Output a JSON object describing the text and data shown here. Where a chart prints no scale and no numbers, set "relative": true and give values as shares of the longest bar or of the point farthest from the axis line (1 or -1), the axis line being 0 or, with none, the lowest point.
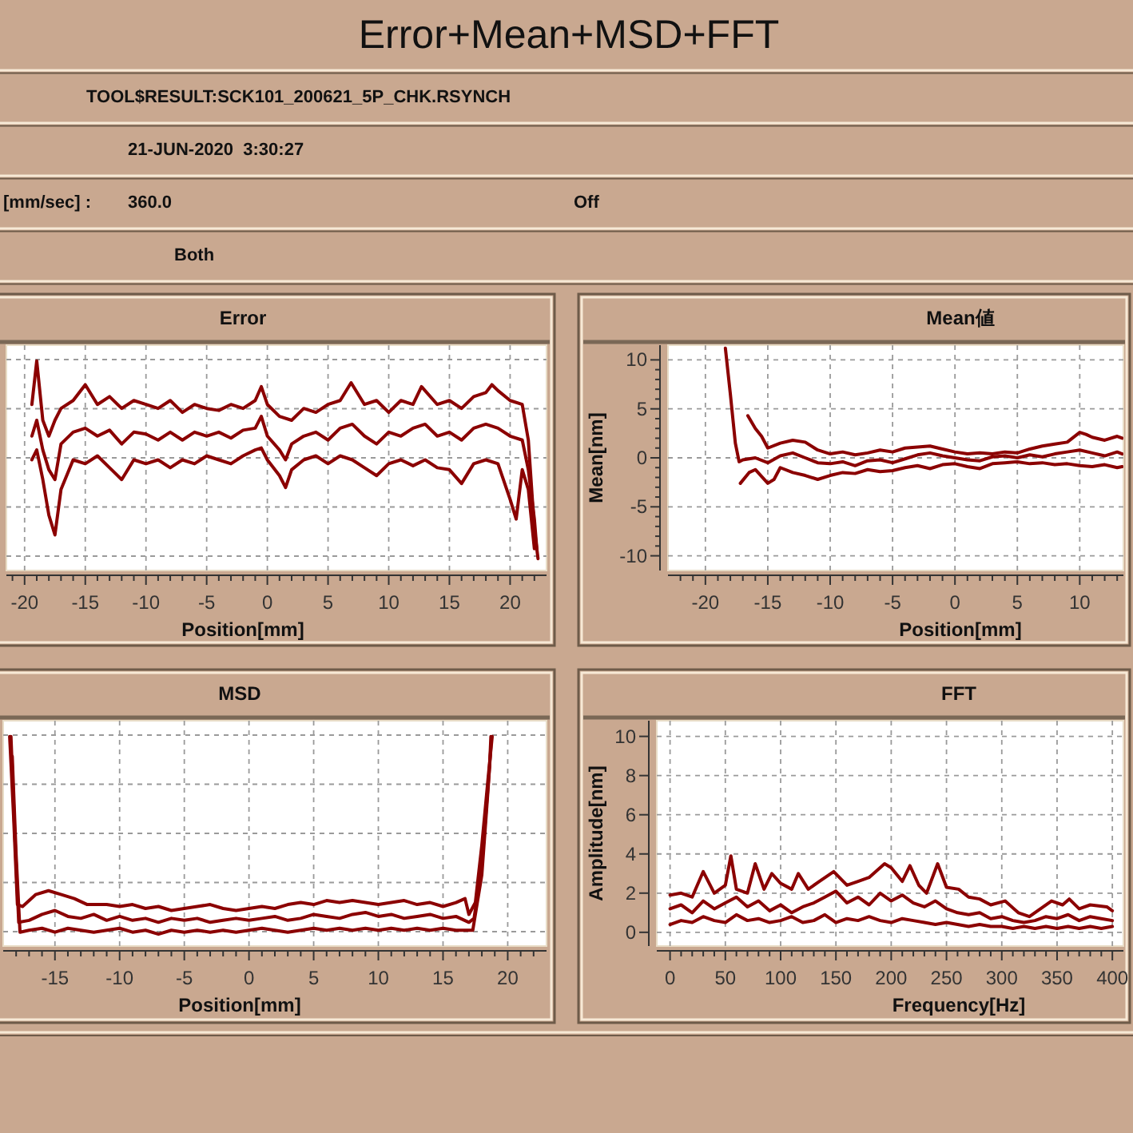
{
  "chart_data": [
    {
      "type": "other",
      "title": "Error+Mean+MSD+FFT",
      "annotations": [
        "TOOL$RESULT:SCK101_200621_5P_CHK.RSYNCH",
        "21-JUN-2020  3:30:27",
        "[mm/sec] :",
        "360.0",
        "Off",
        "Both"
      ]
    },
    {
      "type": "line",
      "title": "Error",
      "xlabel": "Position[mm]",
      "relative": true,
      "grid": true,
      "xlim": [
        -21.5,
        23
      ],
      "xticks": [
        -20,
        -15,
        -10,
        -5,
        0,
        5,
        10,
        15,
        20,
        {
          "value": -21,
          "label": null
        },
        {
          "value": -19,
          "label": null
        },
        {
          "value": -18,
          "label": null
        },
        {
          "value": -17,
          "label": null
        },
        {
          "value": -16,
          "label": null
        },
        {
          "value": -14,
          "label": null
        },
        {
          "value": -13,
          "label": null
        },
        {
          "value": -12,
          "label": null
        },
        {
          "value": -11,
          "label": null
        },
        {
          "value": -9,
          "label": null
        },
        {
          "value": -8,
          "label": null
        },
        {
          "value": -7,
          "label": null
        },
        {
          "value": -6,
          "label": null
        },
        {
          "value": -4,
          "label": null
        },
        {
          "value": -3,
          "label": null
        },
        {
          "value": -2,
          "label": null
        },
        {
          "value": -1,
          "label": null
        },
        {
          "value": 1,
          "label": null
        },
        {
          "value": 2,
          "label": null
        },
        {
          "value": 3,
          "label": null
        },
        {
          "value": 4,
          "label": null
        },
        {
          "value": 6,
          "label": null
        },
        {
          "value": 7,
          "label": null
        },
        {
          "value": 8,
          "label": null
        },
        {
          "value": 9,
          "label": null
        },
        {
          "value": 11,
          "label": null
        },
        {
          "value": 12,
          "label": null
        },
        {
          "value": 13,
          "label": null
        },
        {
          "value": 14,
          "label": null
        },
        {
          "value": 16,
          "label": null
        },
        {
          "value": 17,
          "label": null
        },
        {
          "value": 18,
          "label": null
        },
        {
          "value": 19,
          "label": null
        },
        {
          "value": 21,
          "label": null
        },
        {
          "value": 22,
          "label": null
        }
      ],
      "series": [
        {
          "color": "#8b0000",
          "x": [
            -19.4,
            -19,
            -18.5,
            -18,
            -17.5,
            -17,
            -16,
            -15,
            -14,
            -13,
            -12,
            -11,
            -10,
            -9,
            -8,
            -7,
            -6,
            -5,
            -4,
            -3,
            -2,
            -1,
            -0.5,
            0,
            1,
            2,
            3,
            4,
            5,
            6,
            6.9,
            8,
            9,
            10,
            11,
            12,
            12.7,
            14,
            15,
            16,
            17,
            18,
            18.5,
            19,
            20,
            21,
            21.5,
            22,
            22.3
          ],
          "values": [
            0.78,
            1,
            0.7,
            0.62,
            0.7,
            0.76,
            0.8,
            0.88,
            0.78,
            0.82,
            0.76,
            0.8,
            0.78,
            0.76,
            0.8,
            0.74,
            0.78,
            0.76,
            0.75,
            0.78,
            0.76,
            0.8,
            0.87,
            0.78,
            0.72,
            0.7,
            0.76,
            0.74,
            0.78,
            0.8,
            0.89,
            0.78,
            0.8,
            0.74,
            0.8,
            0.78,
            0.87,
            0.78,
            0.8,
            0.76,
            0.82,
            0.84,
            0.88,
            0.85,
            0.8,
            0.78,
            0.6,
            0.15,
            0
          ]
        },
        {
          "color": "#8b0000",
          "x": [
            -19.4,
            -19,
            -18.5,
            -18,
            -17.5,
            -17,
            -16,
            -15,
            -14,
            -13,
            -12,
            -11,
            -10,
            -9,
            -8,
            -7,
            -6,
            -5,
            -4,
            -3,
            -2,
            -1,
            -0.5,
            0,
            1,
            1.5,
            2,
            3,
            4,
            5,
            6,
            7,
            8,
            9,
            10,
            11,
            12,
            13,
            14,
            15,
            16,
            17,
            18,
            19,
            20,
            21,
            21.5,
            22,
            22.2
          ],
          "values": [
            0.62,
            0.7,
            0.55,
            0.45,
            0.4,
            0.58,
            0.64,
            0.66,
            0.62,
            0.65,
            0.58,
            0.64,
            0.63,
            0.6,
            0.64,
            0.6,
            0.64,
            0.62,
            0.64,
            0.61,
            0.65,
            0.66,
            0.72,
            0.62,
            0.55,
            0.5,
            0.58,
            0.62,
            0.64,
            0.6,
            0.66,
            0.68,
            0.62,
            0.58,
            0.64,
            0.62,
            0.66,
            0.68,
            0.62,
            0.64,
            0.6,
            0.66,
            0.68,
            0.66,
            0.62,
            0.6,
            0.45,
            0.2,
            0.05
          ]
        },
        {
          "color": "#8b0000",
          "x": [
            -19.4,
            -19,
            -18.5,
            -18,
            -17.5,
            -17,
            -16,
            -15,
            -14,
            -13,
            -12,
            -11,
            -10,
            -9,
            -8,
            -7,
            -6,
            -5,
            -4,
            -3,
            -2,
            -1,
            -0.5,
            0,
            1,
            1.5,
            2,
            3,
            4,
            5,
            6,
            7,
            8,
            9,
            10,
            11,
            12,
            13,
            14,
            15,
            16,
            17,
            18,
            19,
            20,
            20.5,
            21,
            21.5,
            22
          ],
          "values": [
            0.5,
            0.55,
            0.4,
            0.22,
            0.12,
            0.35,
            0.5,
            0.48,
            0.52,
            0.46,
            0.4,
            0.5,
            0.48,
            0.5,
            0.46,
            0.5,
            0.48,
            0.52,
            0.5,
            0.48,
            0.52,
            0.55,
            0.56,
            0.5,
            0.42,
            0.36,
            0.45,
            0.5,
            0.52,
            0.48,
            0.52,
            0.5,
            0.46,
            0.42,
            0.48,
            0.5,
            0.47,
            0.5,
            0.46,
            0.45,
            0.38,
            0.48,
            0.5,
            0.48,
            0.3,
            0.2,
            0.45,
            0.35,
            0.05
          ]
        }
      ]
    },
    {
      "type": "line",
      "title": "Mean値",
      "xlabel": "Position[mm]",
      "ylabel": "Mean[nm]",
      "grid": true,
      "xlim": [
        -23,
        13.5
      ],
      "ylim": [
        -11.5,
        11.5
      ],
      "xticks": [
        -20,
        -15,
        -10,
        -5,
        0,
        5,
        10,
        {
          "value": -22,
          "label": null
        },
        {
          "value": -21,
          "label": null
        },
        {
          "value": -19,
          "label": null
        },
        {
          "value": -18,
          "label": null
        },
        {
          "value": -17,
          "label": null
        },
        {
          "value": -16,
          "label": null
        },
        {
          "value": -14,
          "label": null
        },
        {
          "value": -13,
          "label": null
        },
        {
          "value": -12,
          "label": null
        },
        {
          "value": -11,
          "label": null
        },
        {
          "value": -9,
          "label": null
        },
        {
          "value": -8,
          "label": null
        },
        {
          "value": -7,
          "label": null
        },
        {
          "value": -6,
          "label": null
        },
        {
          "value": -4,
          "label": null
        },
        {
          "value": -3,
          "label": null
        },
        {
          "value": -2,
          "label": null
        },
        {
          "value": -1,
          "label": null
        },
        {
          "value": 1,
          "label": null
        },
        {
          "value": 2,
          "label": null
        },
        {
          "value": 3,
          "label": null
        },
        {
          "value": 4,
          "label": null
        },
        {
          "value": 6,
          "label": null
        },
        {
          "value": 7,
          "label": null
        },
        {
          "value": 8,
          "label": null
        },
        {
          "value": 9,
          "label": null
        },
        {
          "value": 11,
          "label": null
        },
        {
          "value": 12,
          "label": null
        },
        {
          "value": 13,
          "label": null
        }
      ],
      "yticks": [
        -10,
        -5,
        0,
        5,
        10,
        {
          "value": -9,
          "label": null
        },
        {
          "value": -8,
          "label": null
        },
        {
          "value": -7,
          "label": null
        },
        {
          "value": -6,
          "label": null
        },
        {
          "value": -4,
          "label": null
        },
        {
          "value": -3,
          "label": null
        },
        {
          "value": -2,
          "label": null
        },
        {
          "value": -1,
          "label": null
        },
        {
          "value": 1,
          "label": null
        },
        {
          "value": 2,
          "label": null
        },
        {
          "value": 3,
          "label": null
        },
        {
          "value": 4,
          "label": null
        },
        {
          "value": 6,
          "label": null
        },
        {
          "value": 7,
          "label": null
        },
        {
          "value": 8,
          "label": null
        },
        {
          "value": 9,
          "label": null
        }
      ],
      "series": [
        {
          "color": "#8b0000",
          "x": [
            -16.6,
            -16,
            -15.5,
            -15,
            -14,
            -13,
            -12,
            -11,
            -10,
            -9,
            -8,
            -7,
            -6,
            -5,
            -4,
            -3,
            -2,
            -1,
            0,
            1,
            2,
            3,
            4,
            5,
            6,
            7,
            8,
            9,
            10,
            10.5,
            11,
            12,
            13,
            13.4
          ],
          "values": [
            4.3,
            3.0,
            2.2,
            1.0,
            1.5,
            1.8,
            1.6,
            0.8,
            0.4,
            0.6,
            0.3,
            0.5,
            0.8,
            0.6,
            1.0,
            1.1,
            1.2,
            0.9,
            0.6,
            0.4,
            0.5,
            0.4,
            0.6,
            0.5,
            0.9,
            1.2,
            1.4,
            1.6,
            2.6,
            2.4,
            2.1,
            1.8,
            2.2,
            2.0
          ]
        },
        {
          "color": "#8b0000",
          "x": [
            -18.4,
            -18,
            -17.6,
            -17.3,
            -17,
            -16,
            -15,
            -14,
            -13,
            -12,
            -11,
            -10,
            -9,
            -8,
            -7,
            -6,
            -5,
            -4,
            -3,
            -2,
            -1,
            0,
            1,
            2,
            3,
            4,
            5,
            6,
            7,
            8,
            9,
            10,
            11,
            12,
            13,
            13.4
          ],
          "values": [
            11.2,
            6.5,
            1.5,
            -0.4,
            -0.2,
            0,
            -0.5,
            0.2,
            0.5,
            0,
            -0.5,
            -0.6,
            -0.4,
            -0.8,
            -0.3,
            -0.2,
            -0.5,
            -0.1,
            0.3,
            0.5,
            0.2,
            0,
            -0.2,
            -0.3,
            0.1,
            0.2,
            0,
            0.3,
            0.1,
            0.4,
            0.6,
            0.8,
            0.5,
            0.2,
            0.6,
            0.4
          ]
        },
        {
          "color": "#8b0000",
          "x": [
            -17.2,
            -16.5,
            -16,
            -15,
            -14.5,
            -14,
            -13,
            -12,
            -11,
            -10,
            -9,
            -8,
            -7,
            -6,
            -5,
            -4,
            -3,
            -2,
            -1,
            0,
            1,
            2,
            3,
            4,
            5,
            6,
            7,
            8,
            9,
            10,
            11,
            12,
            13,
            13.4
          ],
          "values": [
            -2.6,
            -1.5,
            -1.2,
            -2.6,
            -2.2,
            -1.0,
            -1.5,
            -1.8,
            -2.2,
            -1.8,
            -1.5,
            -1.6,
            -1.2,
            -1.4,
            -1.3,
            -1.0,
            -0.8,
            -1.1,
            -0.7,
            -0.6,
            -0.9,
            -1.1,
            -0.6,
            -0.5,
            -0.4,
            -0.6,
            -0.5,
            -0.7,
            -0.6,
            -0.8,
            -0.9,
            -0.7,
            -1.0,
            -0.9
          ]
        }
      ]
    },
    {
      "type": "line",
      "title": "MSD",
      "xlabel": "Position[mm]",
      "relative": true,
      "grid": true,
      "xlim": [
        -19,
        23
      ],
      "xticks": [
        -15,
        -10,
        -5,
        0,
        5,
        10,
        15,
        20,
        {
          "value": -18,
          "label": null
        },
        {
          "value": -17,
          "label": null
        },
        {
          "value": -16,
          "label": null
        },
        {
          "value": -14,
          "label": null
        },
        {
          "value": -13,
          "label": null
        },
        {
          "value": -12,
          "label": null
        },
        {
          "value": -11,
          "label": null
        },
        {
          "value": -9,
          "label": null
        },
        {
          "value": -8,
          "label": null
        },
        {
          "value": -7,
          "label": null
        },
        {
          "value": -6,
          "label": null
        },
        {
          "value": -4,
          "label": null
        },
        {
          "value": -3,
          "label": null
        },
        {
          "value": -2,
          "label": null
        },
        {
          "value": -1,
          "label": null
        },
        {
          "value": 1,
          "label": null
        },
        {
          "value": 2,
          "label": null
        },
        {
          "value": 3,
          "label": null
        },
        {
          "value": 4,
          "label": null
        },
        {
          "value": 6,
          "label": null
        },
        {
          "value": 7,
          "label": null
        },
        {
          "value": 8,
          "label": null
        },
        {
          "value": 9,
          "label": null
        },
        {
          "value": 11,
          "label": null
        },
        {
          "value": 12,
          "label": null
        },
        {
          "value": 13,
          "label": null
        },
        {
          "value": 14,
          "label": null
        },
        {
          "value": 16,
          "label": null
        },
        {
          "value": 17,
          "label": null
        },
        {
          "value": 18,
          "label": null
        },
        {
          "value": 19,
          "label": null
        },
        {
          "value": 21,
          "label": null
        },
        {
          "value": 22,
          "label": null
        }
      ],
      "series": [
        {
          "color": "#8b0000",
          "x": [
            -18.5,
            -18.2,
            -17.9,
            -17.5,
            -16.5,
            -15.5,
            -14.5,
            -13.5,
            -12.5,
            -11,
            -10,
            -9,
            -8,
            -7,
            -6,
            -5,
            -4,
            -3,
            -2,
            -1,
            0,
            1,
            2,
            3,
            4,
            5,
            6,
            7,
            8,
            9,
            10,
            11,
            12,
            13,
            14,
            15,
            16,
            16.7,
            17,
            17.5,
            18,
            18.5,
            18.8
          ],
          "values": [
            1,
            0.6,
            0.15,
            0.14,
            0.2,
            0.22,
            0.2,
            0.18,
            0.15,
            0.15,
            0.14,
            0.15,
            0.13,
            0.14,
            0.12,
            0.13,
            0.14,
            0.15,
            0.13,
            0.12,
            0.13,
            0.14,
            0.13,
            0.15,
            0.16,
            0.15,
            0.17,
            0.16,
            0.17,
            0.16,
            0.15,
            0.16,
            0.17,
            0.15,
            0.16,
            0.14,
            0.16,
            0.18,
            0.1,
            0.16,
            0.45,
            0.8,
            1
          ]
        },
        {
          "color": "#8b0000",
          "x": [
            -18.4,
            -18.1,
            -17.8,
            -17,
            -16,
            -15,
            -14,
            -13,
            -12,
            -11,
            -10,
            -9,
            -8,
            -7,
            -6,
            -5,
            -4,
            -3,
            -2,
            -1,
            0,
            1,
            2,
            3,
            4,
            5,
            6,
            7,
            8,
            9,
            10,
            11,
            12,
            13,
            14,
            15,
            16,
            17,
            17.4,
            18,
            18.6,
            18.7
          ],
          "values": [
            1,
            0.5,
            0.06,
            0.07,
            0.1,
            0.12,
            0.09,
            0.08,
            0.1,
            0.07,
            0.09,
            0.07,
            0.08,
            0.06,
            0.08,
            0.07,
            0.08,
            0.06,
            0.07,
            0.08,
            0.07,
            0.08,
            0.09,
            0.07,
            0.08,
            0.1,
            0.09,
            0.08,
            0.1,
            0.11,
            0.09,
            0.1,
            0.08,
            0.09,
            0.1,
            0.08,
            0.09,
            0.06,
            0.08,
            0.35,
            0.85,
            1
          ]
        },
        {
          "color": "#8b0000",
          "x": [
            -18.3,
            -18,
            -17.7,
            -17,
            -16,
            -15,
            -14,
            -13,
            -12,
            -11,
            -10,
            -9,
            -8,
            -7,
            -6,
            -5,
            -4,
            -3,
            -2,
            -1,
            0,
            1,
            2,
            3,
            4,
            5,
            6,
            7,
            8,
            9,
            10,
            11,
            12,
            13,
            14,
            15,
            16,
            17,
            17.3,
            18,
            18.5,
            18.7
          ],
          "values": [
            0.9,
            0.4,
            0.01,
            0.02,
            0.03,
            0.01,
            0.03,
            0.02,
            0.01,
            0.02,
            0.03,
            0.01,
            0.02,
            0,
            0.02,
            0.01,
            0.02,
            0.01,
            0.02,
            0.01,
            0.02,
            0.03,
            0.02,
            0.01,
            0.02,
            0.03,
            0.02,
            0.03,
            0.02,
            0.03,
            0.02,
            0.03,
            0.02,
            0.03,
            0.02,
            0.03,
            0.02,
            0.02,
            0.02,
            0.3,
            0.75,
            0.95
          ]
        }
      ]
    },
    {
      "type": "line",
      "title": "FFT",
      "xlabel": "Frequency[Hz]",
      "ylabel": "Amplitude[nm]",
      "grid": true,
      "xlim": [
        -12,
        410
      ],
      "ylim": [
        -0.7,
        10.8
      ],
      "xticks": [
        0,
        50,
        100,
        150,
        200,
        250,
        300,
        350,
        400,
        {
          "value": 10,
          "label": null
        },
        {
          "value": 20,
          "label": null
        },
        {
          "value": 30,
          "label": null
        },
        {
          "value": 40,
          "label": null
        },
        {
          "value": 60,
          "label": null
        },
        {
          "value": 70,
          "label": null
        },
        {
          "value": 80,
          "label": null
        },
        {
          "value": 90,
          "label": null
        },
        {
          "value": 110,
          "label": null
        },
        {
          "value": 120,
          "label": null
        },
        {
          "value": 130,
          "label": null
        },
        {
          "value": 140,
          "label": null
        },
        {
          "value": 160,
          "label": null
        },
        {
          "value": 170,
          "label": null
        },
        {
          "value": 180,
          "label": null
        },
        {
          "value": 190,
          "label": null
        },
        {
          "value": 210,
          "label": null
        },
        {
          "value": 220,
          "label": null
        },
        {
          "value": 230,
          "label": null
        },
        {
          "value": 240,
          "label": null
        },
        {
          "value": 260,
          "label": null
        },
        {
          "value": 270,
          "label": null
        },
        {
          "value": 280,
          "label": null
        },
        {
          "value": 290,
          "label": null
        },
        {
          "value": 310,
          "label": null
        },
        {
          "value": 320,
          "label": null
        },
        {
          "value": 330,
          "label": null
        },
        {
          "value": 340,
          "label": null
        },
        {
          "value": 360,
          "label": null
        },
        {
          "value": 370,
          "label": null
        },
        {
          "value": 380,
          "label": null
        },
        {
          "value": 390,
          "label": null
        }
      ],
      "yticks": [
        0,
        2,
        4,
        6,
        8,
        10
      ],
      "series": [
        {
          "color": "#8b0000",
          "x": [
            0,
            10,
            20,
            30,
            40,
            50,
            55,
            60,
            70,
            77,
            85,
            92,
            100,
            110,
            116,
            125,
            135,
            148,
            160,
            170,
            180,
            194,
            200,
            210,
            217,
            225,
            232,
            242,
            250,
            261,
            270,
            280,
            290,
            303,
            315,
            325,
            335,
            345,
            355,
            361,
            370,
            380,
            395,
            400
          ],
          "values": [
            1.9,
            2.0,
            1.8,
            3.1,
            2.0,
            2.4,
            3.9,
            2.2,
            2.0,
            3.5,
            2.2,
            3.0,
            2.5,
            2.2,
            3.0,
            2.2,
            2.6,
            3.1,
            2.4,
            2.6,
            2.8,
            3.5,
            3.3,
            2.6,
            3.4,
            2.4,
            2.0,
            3.5,
            2.3,
            2.2,
            1.8,
            1.7,
            1.4,
            1.6,
            1.0,
            0.8,
            1.2,
            1.6,
            1.4,
            1.7,
            1.2,
            1.4,
            1.3,
            1.1
          ]
        },
        {
          "color": "#8b0000",
          "x": [
            0,
            10,
            20,
            30,
            40,
            50,
            60,
            70,
            80,
            90,
            100,
            110,
            120,
            130,
            140,
            150,
            160,
            170,
            180,
            190,
            200,
            210,
            220,
            230,
            240,
            250,
            260,
            270,
            280,
            290,
            300,
            310,
            320,
            330,
            340,
            350,
            360,
            370,
            380,
            390,
            400
          ],
          "values": [
            1.2,
            1.4,
            1.0,
            1.6,
            1.2,
            1.5,
            1.8,
            1.3,
            1.6,
            1.1,
            1.4,
            1.0,
            1.3,
            1.5,
            1.8,
            2.1,
            1.5,
            1.8,
            1.4,
            2.0,
            1.6,
            1.9,
            1.5,
            1.3,
            1.6,
            1.2,
            1.0,
            0.9,
            1.0,
            0.7,
            0.8,
            0.6,
            0.5,
            0.6,
            0.8,
            0.7,
            0.9,
            0.6,
            0.8,
            0.7,
            0.6
          ]
        },
        {
          "color": "#8b0000",
          "x": [
            0,
            10,
            20,
            30,
            40,
            50,
            60,
            70,
            80,
            90,
            100,
            110,
            120,
            130,
            140,
            150,
            160,
            170,
            180,
            190,
            200,
            210,
            220,
            230,
            240,
            250,
            260,
            270,
            280,
            290,
            300,
            310,
            320,
            330,
            340,
            350,
            360,
            370,
            380,
            390,
            400
          ],
          "values": [
            0.4,
            0.6,
            0.5,
            0.8,
            0.6,
            0.5,
            0.9,
            0.6,
            0.7,
            0.5,
            0.6,
            0.8,
            0.5,
            0.6,
            0.9,
            0.5,
            0.7,
            0.6,
            0.8,
            0.6,
            0.5,
            0.7,
            0.6,
            0.5,
            0.4,
            0.5,
            0.4,
            0.3,
            0.4,
            0.3,
            0.3,
            0.2,
            0.3,
            0.2,
            0.3,
            0.2,
            0.3,
            0.2,
            0.3,
            0.2,
            0.3
          ]
        }
      ]
    }
  ]
}
